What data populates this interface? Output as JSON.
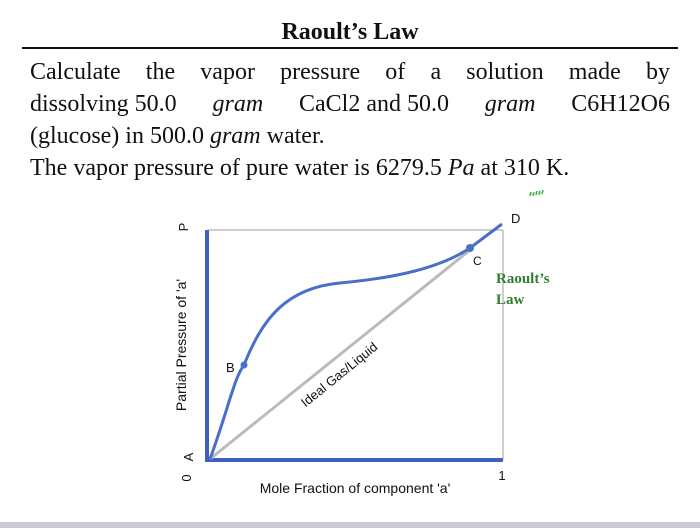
{
  "title": "Raoult’s Law",
  "problem": {
    "line1": [
      "Calculate",
      "the",
      "vapor",
      "pressure",
      "of",
      "a",
      "solution",
      "made",
      "by"
    ],
    "line2": {
      "p1": "dissolving 50.0",
      "u1": "gram",
      "p2": "CaCl2 and 50.0",
      "u2": "gram",
      "p3": "C6H12O6"
    },
    "line3": {
      "p1": "(glucose) in 500.0",
      "u1": "gram",
      "p2": "water."
    },
    "line4": {
      "p1": "The vapor pressure of pure water is 6279.5",
      "u1": "Pa",
      "p2": "at 310 K."
    }
  },
  "figure": {
    "y_axis_letter": "P",
    "y_axis_label": "Partial Pressure of 'a'",
    "x_axis_label": "Mole Fraction of component 'a'",
    "x_tick_start": "0",
    "x_tick_end": "1",
    "points": {
      "a": "A",
      "b": "B",
      "c": "C",
      "d": "D"
    },
    "ideal_label": "Ideal Gas/Liquid",
    "raoult_label_line1": "Raoult’s",
    "raoult_label_line2": "Law",
    "colors": {
      "axis": "#3f5fc0",
      "curve": "#4a6fc8",
      "ideal_line": "#bbbbbb",
      "raoult_label": "#2e7d32"
    }
  }
}
